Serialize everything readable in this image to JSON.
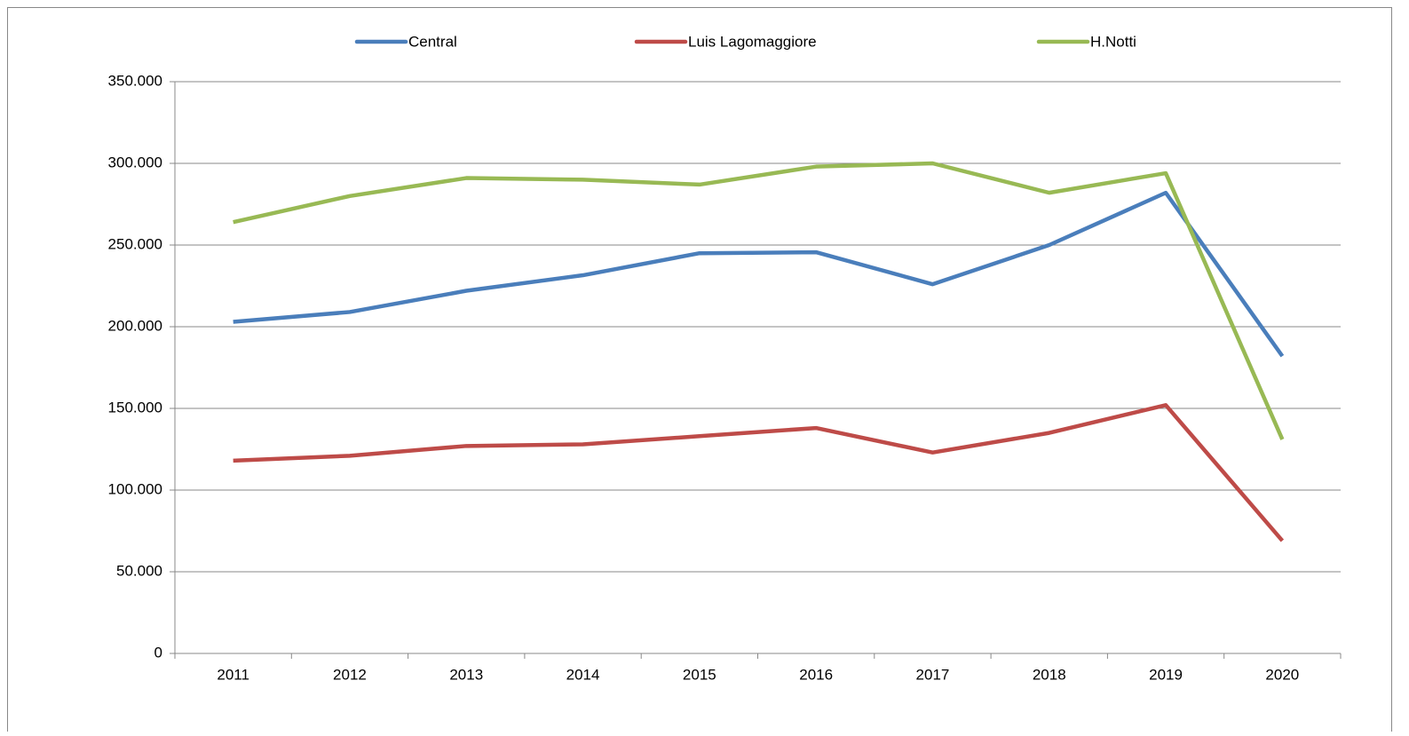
{
  "chart_data": {
    "type": "line",
    "categories": [
      "2011",
      "2012",
      "2013",
      "2014",
      "2015",
      "2016",
      "2017",
      "2018",
      "2019",
      "2020"
    ],
    "series": [
      {
        "name": "Central",
        "color": "#4a7ebb",
        "values": [
          203000,
          209000,
          222000,
          231500,
          245000,
          245600,
          226000,
          250000,
          282000,
          182000
        ]
      },
      {
        "name": "Luis Lagomaggiore",
        "color": "#be4b48",
        "values": [
          118000,
          121000,
          127000,
          128000,
          133000,
          138000,
          123000,
          135000,
          152000,
          69000
        ]
      },
      {
        "name": "H.Notti",
        "color": "#98b954",
        "values": [
          264000,
          280000,
          291000,
          290000,
          287000,
          298000,
          300000,
          282000,
          294000,
          131000
        ]
      }
    ],
    "ylim": [
      0,
      350000
    ],
    "yticks": [
      0,
      {
        "value": 50000,
        "label": "50.000"
      },
      {
        "value": 100000,
        "label": "100.000"
      },
      {
        "value": 150000,
        "label": "150.000"
      },
      {
        "value": 200000,
        "label": "200.000"
      },
      {
        "value": 250000,
        "label": "250.000"
      },
      {
        "value": 300000,
        "label": "300.000"
      },
      {
        "value": 350000,
        "label": "350.000"
      }
    ],
    "grid": true,
    "legend": "top"
  }
}
